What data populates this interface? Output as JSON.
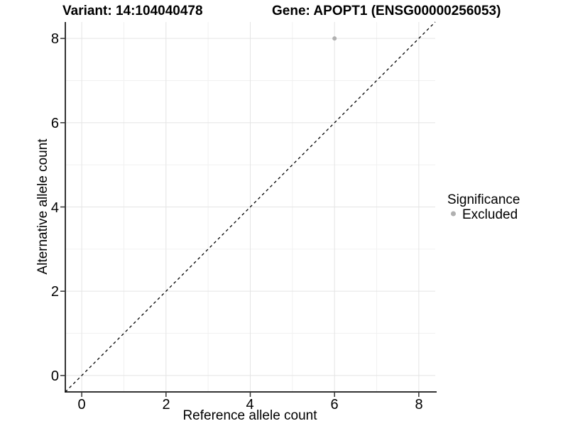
{
  "header": {
    "variant_title": "Variant: 14:104040478",
    "gene_title": "Gene: APOPT1 (ENSG00000256053)"
  },
  "axes": {
    "x": {
      "label": "Reference allele count",
      "tick_labels": [
        "0",
        "2",
        "4",
        "6",
        "8"
      ]
    },
    "y": {
      "label": "Alternative allele count",
      "tick_labels": [
        "0",
        "2",
        "4",
        "6",
        "8"
      ]
    }
  },
  "legend": {
    "title": "Significance",
    "items": [
      {
        "label": "Excluded",
        "marker_color": "#b0b0b0"
      }
    ]
  },
  "chart_data": {
    "type": "scatter",
    "title": "Variant: 14:104040478    Gene: APOPT1 (ENSG00000256053)",
    "xlabel": "Reference allele count",
    "ylabel": "Alternative allele count",
    "xlim": [
      -0.39,
      8.39
    ],
    "ylim": [
      -0.39,
      8.39
    ],
    "x_ticks": [
      0,
      2,
      4,
      6,
      8
    ],
    "y_ticks": [
      0,
      2,
      4,
      6,
      8
    ],
    "minor_ticks": [
      1,
      3,
      5,
      7
    ],
    "grid": "major+minor",
    "legend_position": "right",
    "legend_title": "Significance",
    "series": [
      {
        "name": "Excluded",
        "color": "#b0b0b0",
        "points": [
          {
            "x": 6,
            "y": 8
          }
        ]
      }
    ],
    "reference_line": {
      "type": "identity y=x",
      "style": "dashed",
      "color": "#000000",
      "from": [
        -0.39,
        -0.39
      ],
      "to": [
        8.39,
        8.39
      ]
    }
  },
  "style": {
    "background": "#ffffff",
    "grid_major_color": "#e4e4e4",
    "grid_minor_color": "#f1f1f1",
    "axis_color": "#333333",
    "tick_color": "#333333",
    "text_color": "#000000",
    "point_color": "#b0b0b0"
  }
}
